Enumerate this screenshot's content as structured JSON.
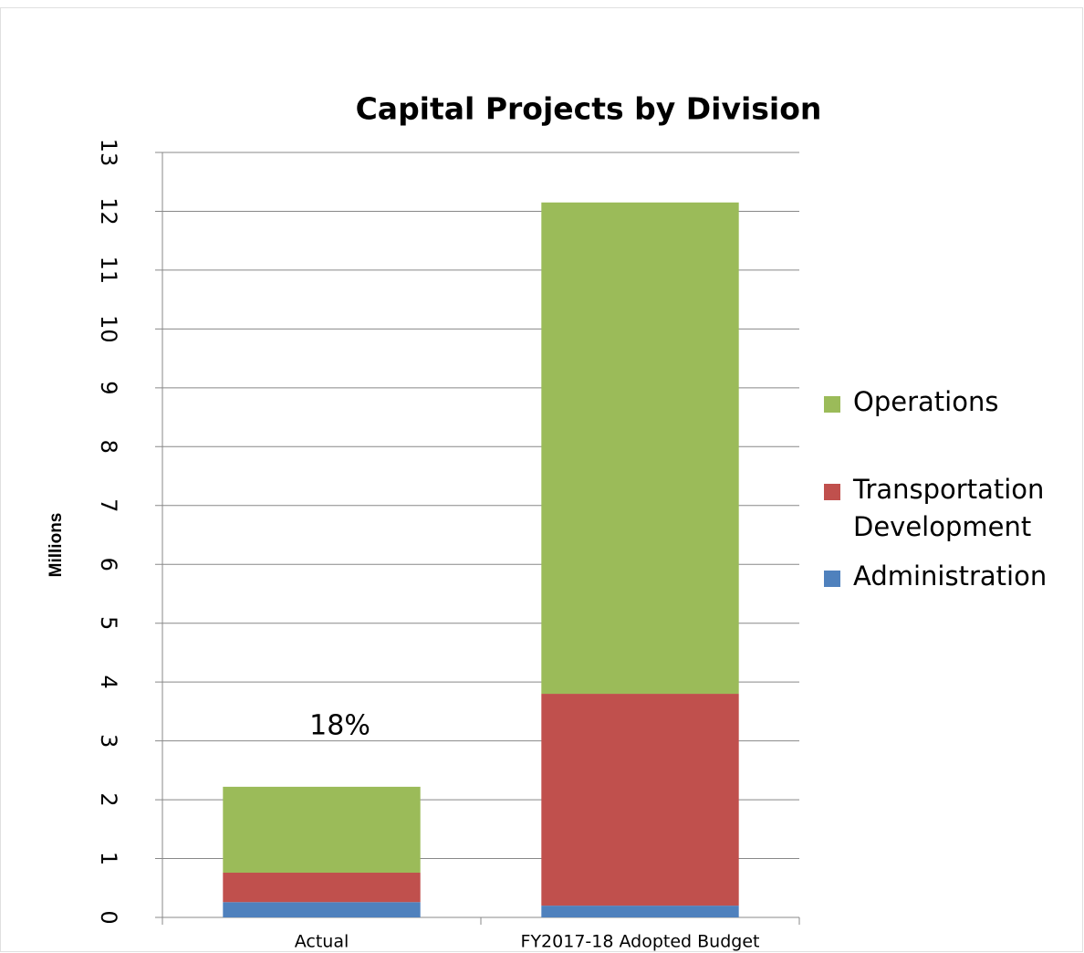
{
  "chart_data": {
    "type": "stacked_bar",
    "title": "Capital Projects by Division",
    "y_label": "Millions",
    "categories": [
      "Actual",
      "FY2017-18 Adopted Budget"
    ],
    "series": [
      {
        "name": "Administration",
        "color": "#4f81bd",
        "values": [
          0.26,
          0.2
        ]
      },
      {
        "name": "Transportation Development",
        "color": "#c0504d",
        "values": [
          0.5,
          3.6
        ]
      },
      {
        "name": "Operations",
        "color": "#9bbb59",
        "values": [
          1.46,
          8.35
        ]
      }
    ],
    "annotation": "18%",
    "ylim": [
      0,
      13
    ],
    "yticks": [
      0,
      1,
      2,
      3,
      4,
      5,
      6,
      7,
      8,
      9,
      10,
      11,
      12,
      13
    ],
    "grid": true,
    "legend": "right"
  }
}
